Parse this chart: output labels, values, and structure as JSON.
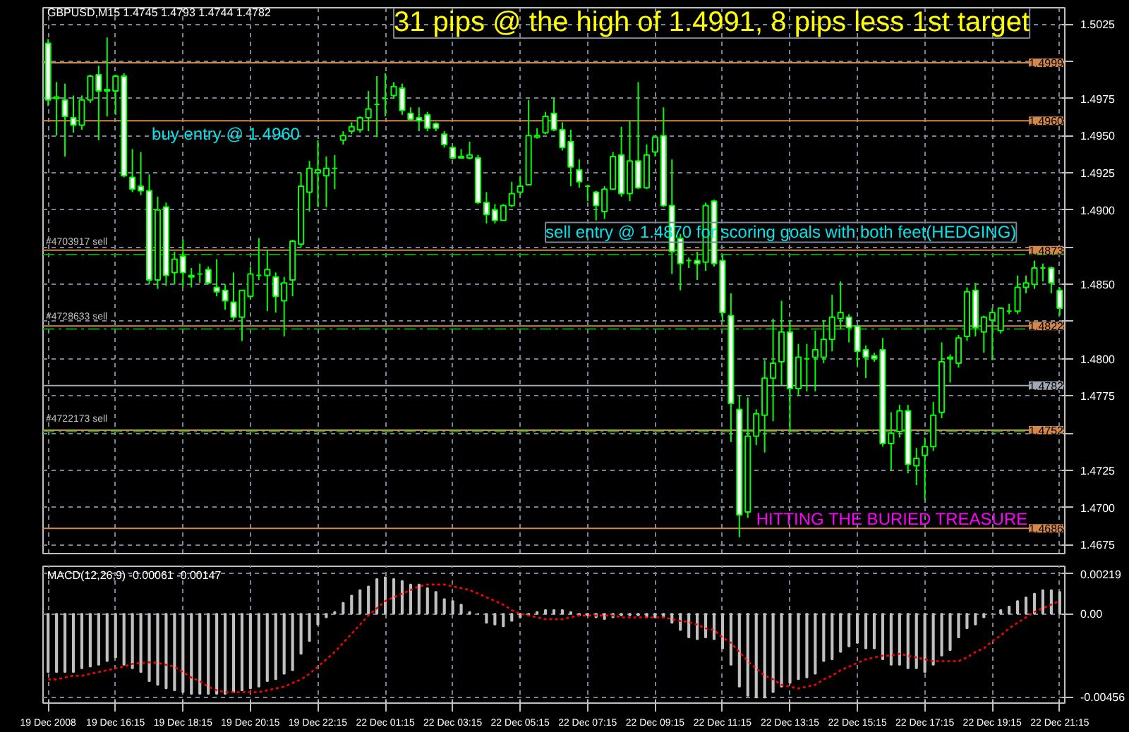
{
  "chart_data": [
    {
      "type": "candlestick",
      "title": "GBPUSD,M15 1.4745 1.4793 1.4744 1.4782",
      "color": "#00ff00",
      "tick_labels": "y",
      "grid": true,
      "categories": [
        null,
        null,
        null,
        null,
        null,
        null,
        null,
        null,
        null,
        null,
        null,
        null,
        null,
        null,
        null,
        null,
        null,
        null,
        null,
        null,
        null,
        null,
        null,
        null,
        null,
        null,
        null,
        null,
        null,
        null,
        null,
        null,
        null,
        null,
        null,
        null,
        null,
        null,
        null,
        null,
        null,
        null,
        null,
        null,
        null,
        null,
        null,
        null,
        null,
        null,
        null,
        null,
        null,
        null,
        null,
        null,
        null,
        null,
        null,
        null,
        null,
        null,
        null,
        null,
        null,
        null,
        null,
        null,
        null,
        null,
        null,
        null,
        null,
        null,
        null,
        null,
        null,
        null,
        null,
        null,
        null,
        null,
        null,
        null,
        null,
        null,
        null,
        null,
        null,
        null,
        null,
        null,
        null,
        null,
        null,
        null,
        null,
        null,
        null,
        null,
        null,
        null,
        null,
        null,
        null,
        null,
        null,
        null,
        null,
        null,
        null,
        null,
        null,
        null,
        null,
        null,
        null,
        null,
        null,
        null,
        null
      ],
      "ohlc": [
        [
          1.5012,
          1.5015,
          1.497,
          1.4974
        ],
        [
          1.4975,
          1.4986,
          1.495,
          1.4976
        ],
        [
          1.4974,
          1.4985,
          1.4936,
          1.4963
        ],
        [
          1.4962,
          1.4977,
          1.4952,
          1.4957
        ],
        [
          1.4957,
          1.4977,
          1.4954,
          1.4974
        ],
        [
          1.4974,
          1.4991,
          1.4972,
          1.499
        ],
        [
          1.4991,
          1.4997,
          1.4947,
          1.498
        ],
        [
          1.498,
          1.5016,
          1.4963,
          1.4981
        ],
        [
          1.498,
          1.4991,
          1.4964,
          1.499
        ],
        [
          1.499,
          1.4992,
          1.4922,
          1.4923
        ],
        [
          1.4922,
          1.4941,
          1.4912,
          1.4914
        ],
        [
          1.4916,
          1.4939,
          1.491,
          1.4913
        ],
        [
          1.4913,
          1.4924,
          1.485,
          1.4853
        ],
        [
          1.4853,
          1.4909,
          1.4847,
          1.49
        ],
        [
          1.4902,
          1.4905,
          1.4849,
          1.4856
        ],
        [
          1.4858,
          1.4872,
          1.485,
          1.4867
        ],
        [
          1.4869,
          1.488,
          1.4848,
          1.4858
        ],
        [
          1.4856,
          1.4861,
          1.4848,
          1.4855
        ],
        [
          1.4857,
          1.4864,
          1.4851,
          1.4857
        ],
        [
          1.486,
          1.4862,
          1.485,
          1.4851
        ],
        [
          1.4848,
          1.4867,
          1.4842,
          1.4845
        ],
        [
          1.4846,
          1.485,
          1.4833,
          1.4839
        ],
        [
          1.4838,
          1.4858,
          1.4826,
          1.4828
        ],
        [
          1.4828,
          1.4846,
          1.4812,
          1.4846
        ],
        [
          1.4842,
          1.4862,
          1.484,
          1.4857
        ],
        [
          1.4856,
          1.4881,
          1.4853,
          1.4856
        ],
        [
          1.4856,
          1.4873,
          1.4832,
          1.486
        ],
        [
          1.4855,
          1.4858,
          1.4831,
          1.4842
        ],
        [
          1.4839,
          1.4855,
          1.4815,
          1.4851
        ],
        [
          1.4853,
          1.488,
          1.4842,
          1.4879
        ],
        [
          1.4877,
          1.4925,
          1.4875,
          1.4916
        ],
        [
          1.4912,
          1.4933,
          1.4899,
          1.4928
        ],
        [
          1.4925,
          1.4947,
          1.4902,
          1.4927
        ],
        [
          1.4923,
          1.4936,
          1.4902,
          1.4928
        ],
        [
          1.4928,
          1.4937,
          1.4914,
          1.4928
        ],
        [
          1.4947,
          1.4953,
          1.4944,
          1.495
        ],
        [
          1.4953,
          1.4959,
          1.4951,
          1.4956
        ],
        [
          1.4954,
          1.4963,
          1.4952,
          1.4962
        ],
        [
          1.4962,
          1.498,
          1.4953,
          1.4968
        ],
        [
          1.4971,
          1.499,
          1.4949,
          1.4971
        ],
        [
          1.4975,
          1.4992,
          1.4963,
          1.4975
        ],
        [
          1.4977,
          1.4986,
          1.4975,
          1.4983
        ],
        [
          1.4982,
          1.4985,
          1.4964,
          1.4967
        ],
        [
          1.4965,
          1.4969,
          1.496,
          1.4961
        ],
        [
          1.4962,
          1.4969,
          1.4953,
          1.496
        ],
        [
          1.4964,
          1.4966,
          1.4953,
          1.4955
        ],
        [
          1.4958,
          1.4959,
          1.4953,
          1.4955
        ],
        [
          1.4951,
          1.4953,
          1.4942,
          1.4944
        ],
        [
          1.4942,
          1.4943,
          1.4934,
          1.4935
        ],
        [
          1.4936,
          1.4941,
          1.4935,
          1.4935
        ],
        [
          1.4935,
          1.4946,
          1.4934,
          1.4937
        ],
        [
          1.4935,
          1.4937,
          1.4904,
          1.4905
        ],
        [
          1.4905,
          1.4912,
          1.4891,
          1.4897
        ],
        [
          1.49,
          1.4904,
          1.4891,
          1.4893
        ],
        [
          1.4893,
          1.4904,
          1.4893,
          1.4903
        ],
        [
          1.4903,
          1.4919,
          1.4902,
          1.4911
        ],
        [
          1.4912,
          1.4923,
          1.491,
          1.4916
        ],
        [
          1.4917,
          1.4974,
          1.4917,
          1.495
        ],
        [
          1.4949,
          1.4955,
          1.4948,
          1.495
        ],
        [
          1.4952,
          1.4966,
          1.4951,
          1.4963
        ],
        [
          1.4965,
          1.4975,
          1.4953,
          1.4954
        ],
        [
          1.4954,
          1.4959,
          1.494,
          1.4942
        ],
        [
          1.4946,
          1.4954,
          1.4916,
          1.4929
        ],
        [
          1.4927,
          1.4934,
          1.4915,
          1.4919
        ],
        [
          1.4916,
          1.4917,
          1.4906,
          1.4916
        ],
        [
          1.4912,
          1.4913,
          1.4893,
          1.4903
        ],
        [
          1.4899,
          1.4916,
          1.4894,
          1.4914
        ],
        [
          1.4914,
          1.4939,
          1.4914,
          1.4936
        ],
        [
          1.4937,
          1.4956,
          1.4909,
          1.4911
        ],
        [
          1.4911,
          1.496,
          1.4906,
          1.4933
        ],
        [
          1.4933,
          1.4986,
          1.4914,
          1.4915
        ],
        [
          1.4915,
          1.4944,
          1.4914,
          1.4937
        ],
        [
          1.4939,
          1.495,
          1.4936,
          1.4949
        ],
        [
          1.495,
          1.4969,
          1.4902,
          1.4903
        ],
        [
          1.4903,
          1.4934,
          1.4857,
          1.4872
        ],
        [
          1.4881,
          1.4884,
          1.4846,
          1.4864
        ],
        [
          1.4866,
          1.4868,
          1.4861,
          1.4866
        ],
        [
          1.4866,
          1.4872,
          1.4853,
          1.4864
        ],
        [
          1.4865,
          1.4905,
          1.4859,
          1.4903
        ],
        [
          1.4906,
          1.4907,
          1.4862,
          1.4864
        ],
        [
          1.4866,
          1.487,
          1.4825,
          1.4831
        ],
        [
          1.4829,
          1.4844,
          1.4744,
          1.477
        ],
        [
          1.4766,
          1.4775,
          1.468,
          1.4695
        ],
        [
          1.4697,
          1.4774,
          1.4693,
          1.4748
        ],
        [
          1.4748,
          1.4766,
          1.4742,
          1.4763
        ],
        [
          1.4762,
          1.4799,
          1.4737,
          1.4787
        ],
        [
          1.4787,
          1.4827,
          1.4758,
          1.4797
        ],
        [
          1.4798,
          1.4839,
          1.4782,
          1.4818
        ],
        [
          1.4818,
          1.4826,
          1.4751,
          1.478
        ],
        [
          1.478,
          1.481,
          1.4775,
          1.4801
        ],
        [
          1.48,
          1.481,
          1.4778,
          1.48
        ],
        [
          1.4801,
          1.4819,
          1.4778,
          1.4806
        ],
        [
          1.4801,
          1.4826,
          1.4797,
          1.4813
        ],
        [
          1.4813,
          1.4843,
          1.4805,
          1.4828
        ],
        [
          1.4827,
          1.4852,
          1.482,
          1.4831
        ],
        [
          1.4828,
          1.483,
          1.4811,
          1.4821
        ],
        [
          1.4822,
          1.4822,
          1.4795,
          1.4805
        ],
        [
          1.4806,
          1.4809,
          1.4787,
          1.4801
        ],
        [
          1.4802,
          1.4804,
          1.4798,
          1.48
        ],
        [
          1.4806,
          1.4814,
          1.4741,
          1.4743
        ],
        [
          1.4743,
          1.4764,
          1.4725,
          1.475
        ],
        [
          1.4751,
          1.4769,
          1.4747,
          1.4765
        ],
        [
          1.4765,
          1.4769,
          1.4723,
          1.4729
        ],
        [
          1.4728,
          1.474,
          1.4715,
          1.4733
        ],
        [
          1.4735,
          1.4747,
          1.4705,
          1.4741
        ],
        [
          1.4741,
          1.4771,
          1.4738,
          1.4762
        ],
        [
          1.4764,
          1.4811,
          1.476,
          1.4798
        ],
        [
          1.48,
          1.4803,
          1.4784,
          1.4801
        ],
        [
          1.4797,
          1.4816,
          1.4794,
          1.4814
        ],
        [
          1.4815,
          1.4848,
          1.4812,
          1.4845
        ],
        [
          1.4846,
          1.4851,
          1.4815,
          1.4821
        ],
        [
          1.4818,
          1.4829,
          1.4804,
          1.4828
        ],
        [
          1.4826,
          1.4834,
          1.4799,
          1.4831
        ],
        [
          1.4819,
          1.4834,
          1.4817,
          1.4834
        ],
        [
          1.4832,
          1.4837,
          1.483,
          1.4832
        ],
        [
          1.4832,
          1.4856,
          1.483,
          1.4848
        ],
        [
          1.4848,
          1.4856,
          1.4844,
          1.4851
        ],
        [
          1.485,
          1.4866,
          1.4847,
          1.4861
        ],
        [
          1.4861,
          1.4864,
          1.4852,
          1.4861
        ],
        [
          1.4861,
          1.4862,
          1.4844,
          1.4851
        ],
        [
          1.4846,
          1.4848,
          1.4829,
          1.4834
        ]
      ],
      "ylim": [
        1.4669,
        1.5036
      ],
      "yticks": [
        1.5025,
        {
          "value": 1.5,
          "label": null
        },
        1.4975,
        {
          "value": 1.495,
          "label": "1.4950"
        },
        1.4925,
        {
          "value": 1.49,
          "label": "1.4900"
        },
        {
          "value": 1.4875,
          "label": null
        },
        {
          "value": 1.485,
          "label": "1.4850"
        },
        {
          "value": 1.4825,
          "label": null
        },
        {
          "value": 1.48,
          "label": "1.4800"
        },
        1.4775,
        {
          "value": 1.475,
          "label": null
        },
        1.4725,
        {
          "value": 1.47,
          "label": "1.4700"
        },
        1.4675
      ],
      "ref_lines": [
        {
          "axis": "y",
          "value": 1.4999,
          "label": "1.4999",
          "color": "#d2874b"
        },
        {
          "axis": "y",
          "value": 1.496,
          "label": "1.4960",
          "color": "#d2874b"
        },
        {
          "axis": "y",
          "value": 1.4873,
          "label": "1.4873",
          "color": "#d2874b"
        },
        {
          "axis": "y",
          "value": 1.4822,
          "label": "1.4822",
          "color": "#d2874b"
        },
        {
          "axis": "y",
          "value": 1.4782,
          "label": "1.4782",
          "color": "#a0a8b4"
        },
        {
          "axis": "y",
          "value": 1.4752,
          "label": "1.4752",
          "color": "#d2874b"
        },
        {
          "axis": "y",
          "value": 1.4686,
          "label": "1.4686",
          "color": "#d2874b"
        },
        {
          "axis": "y",
          "value": 1.487,
          "label": "#4703917 sell",
          "color": "#00a000",
          "line_style": "dashed"
        },
        {
          "axis": "y",
          "value": 1.482,
          "label": "#4728633 sell",
          "color": "#00a000",
          "line_style": "dashed"
        },
        {
          "axis": "y",
          "value": 1.4751,
          "label": "#4722173 sell",
          "color": "#00a000",
          "line_style": "dashed"
        }
      ],
      "annotations": [
        "31 pips @ the high of 1.4991, 8 pips less 1st target",
        "buy entry @ 1.4960",
        "sell entry @ 1.4870 for scoring goals with both feet(HEDGING)",
        "HITTING THE BURIED TREASURE"
      ]
    },
    {
      "type": "bar",
      "title": "MACD(12,26,9) -0.00061 -0.00147",
      "grid": true,
      "categories": [
        "19 Dec 2008",
        null,
        null,
        null,
        null,
        null,
        null,
        null,
        "19 Dec 16:15",
        null,
        null,
        null,
        null,
        null,
        null,
        null,
        "19 Dec 18:15",
        null,
        null,
        null,
        null,
        null,
        null,
        null,
        "19 Dec 20:15",
        null,
        null,
        null,
        null,
        null,
        null,
        null,
        "19 Dec 22:15",
        null,
        null,
        null,
        null,
        null,
        null,
        null,
        "22 Dec 01:15",
        null,
        null,
        null,
        null,
        null,
        null,
        null,
        "22 Dec 03:15",
        null,
        null,
        null,
        null,
        null,
        null,
        null,
        "22 Dec 05:15",
        null,
        null,
        null,
        null,
        null,
        null,
        null,
        "22 Dec 07:15",
        null,
        null,
        null,
        null,
        null,
        null,
        null,
        "22 Dec 09:15",
        null,
        null,
        null,
        null,
        null,
        null,
        null,
        "22 Dec 11:15",
        null,
        null,
        null,
        null,
        null,
        null,
        null,
        "22 Dec 13:15",
        null,
        null,
        null,
        null,
        null,
        null,
        null,
        "22 Dec 15:15",
        null,
        null,
        null,
        null,
        null,
        null,
        null,
        "22 Dec 17:15",
        null,
        null,
        null,
        null,
        null,
        null,
        null,
        "22 Dec 19:15",
        null,
        null,
        null,
        null,
        null,
        null,
        null,
        "22 Dec 21:15"
      ],
      "ylim": [
        -0.0049,
        0.0026
      ],
      "yticks": [
        0.00219,
        {
          "value": 0,
          "label": "0.00"
        },
        -0.00456
      ],
      "series": [
        {
          "type": "bar",
          "color": "#c0c0c0",
          "values": [
            -0.0032,
            -0.0032,
            -0.0032,
            -0.0032,
            -0.003,
            -0.0029,
            -0.0028,
            -0.0026,
            -0.0024,
            -0.0028,
            -0.003,
            -0.0032,
            -0.0037,
            -0.0039,
            -0.0041,
            -0.0042,
            -0.0043,
            -0.0044,
            -0.0044,
            -0.0044,
            -0.0044,
            -0.0044,
            -0.0043,
            -0.0042,
            -0.0041,
            -0.004,
            -0.0037,
            -0.0036,
            -0.0033,
            -0.0031,
            -0.0022,
            -0.0015,
            -0.0006,
            -0.0002,
            0.0001,
            0.0006,
            0.001,
            0.0013,
            0.0015,
            0.0019,
            0.002,
            0.0019,
            0.0018,
            0.0016,
            0.0016,
            0.0014,
            0.0012,
            0.0008,
            0.0007,
            0.0005,
            0.0001,
            0.0,
            -0.0005,
            -0.0006,
            -0.0007,
            -0.0004,
            -0.0002,
            -0.0001,
            0.0001,
            0.0002,
            0.0002,
            0.0002,
            0.0001,
            -0.0001,
            -0.0001,
            -0.0002,
            -0.0003,
            -0.0002,
            -0.0001,
            -0.0001,
            -0.0001,
            -0.0002,
            -0.0002,
            -0.0002,
            -0.0005,
            -0.0009,
            -0.0013,
            -0.0014,
            -0.0013,
            -0.0014,
            -0.0019,
            -0.0028,
            -0.004,
            -0.0045,
            -0.0046,
            -0.0046,
            -0.0043,
            -0.004,
            -0.0038,
            -0.0036,
            -0.0035,
            -0.0033,
            -0.0026,
            -0.0025,
            -0.0021,
            -0.0018,
            -0.0016,
            -0.0019,
            -0.0019,
            -0.0025,
            -0.0028,
            -0.0028,
            -0.003,
            -0.003,
            -0.0032,
            -0.0028,
            -0.0023,
            -0.002,
            -0.0013,
            -0.0008,
            -0.0006,
            -0.0002,
            0.0,
            0.0002,
            0.0004,
            0.0007,
            0.0009,
            0.0011,
            0.0013,
            0.0013,
            0.0012
          ]
        },
        {
          "type": "line",
          "color": "#ff0000",
          "line_style": "dotted",
          "values": [
            -0.0036,
            -0.0036,
            -0.0035,
            -0.0034,
            -0.0034,
            -0.0033,
            -0.0032,
            -0.0031,
            -0.003,
            -0.0029,
            -0.00275,
            -0.0027,
            -0.00266,
            -0.0027,
            -0.0028,
            -0.0029,
            -0.0032,
            -0.0035,
            -0.0037,
            -0.004,
            -0.0042,
            -0.0043,
            -0.0043,
            -0.0043,
            -0.0043,
            -0.0043,
            -0.0042,
            -0.0041,
            -0.004,
            -0.0038,
            -0.0036,
            -0.0033,
            -0.0029,
            -0.0025,
            -0.0021,
            -0.0016,
            -0.0011,
            -0.0006,
            -0.0001,
            0.0003,
            0.0007,
            0.0009,
            0.0011,
            0.0013,
            0.0015,
            0.0016,
            0.0016,
            0.0016,
            0.0015,
            0.0014,
            0.0013,
            0.0011,
            0.0009,
            0.0007,
            0.0005,
            0.0002,
            0.0,
            -0.0001,
            -0.0002,
            -0.0003,
            -0.0003,
            -0.0003,
            -0.0002,
            -0.0001,
            -0.0001,
            -0.0001,
            -0.0001,
            -0.0001,
            -0.0002,
            -0.0002,
            -0.0002,
            -0.0002,
            -0.0002,
            -0.0002,
            -0.0003,
            -0.0004,
            -0.00045,
            -0.0006,
            -0.0008,
            -0.0009,
            -0.0013,
            -0.0016,
            -0.0021,
            -0.0026,
            -0.003,
            -0.0034,
            -0.0036,
            -0.0039,
            -0.004,
            -0.0041,
            -0.004,
            -0.0039,
            -0.0036,
            -0.0034,
            -0.0031,
            -0.0029,
            -0.0027,
            -0.0025,
            -0.0024,
            -0.0023,
            -0.0023,
            -0.0022,
            -0.0023,
            -0.0024,
            -0.0025,
            -0.0026,
            -0.0026,
            -0.0026,
            -0.0026,
            -0.0024,
            -0.0021,
            -0.0019,
            -0.0015,
            -0.0012,
            -0.0008,
            -0.0005,
            -0.0002,
            0.0001,
            0.0003,
            0.0005,
            0.0007
          ]
        }
      ]
    }
  ]
}
